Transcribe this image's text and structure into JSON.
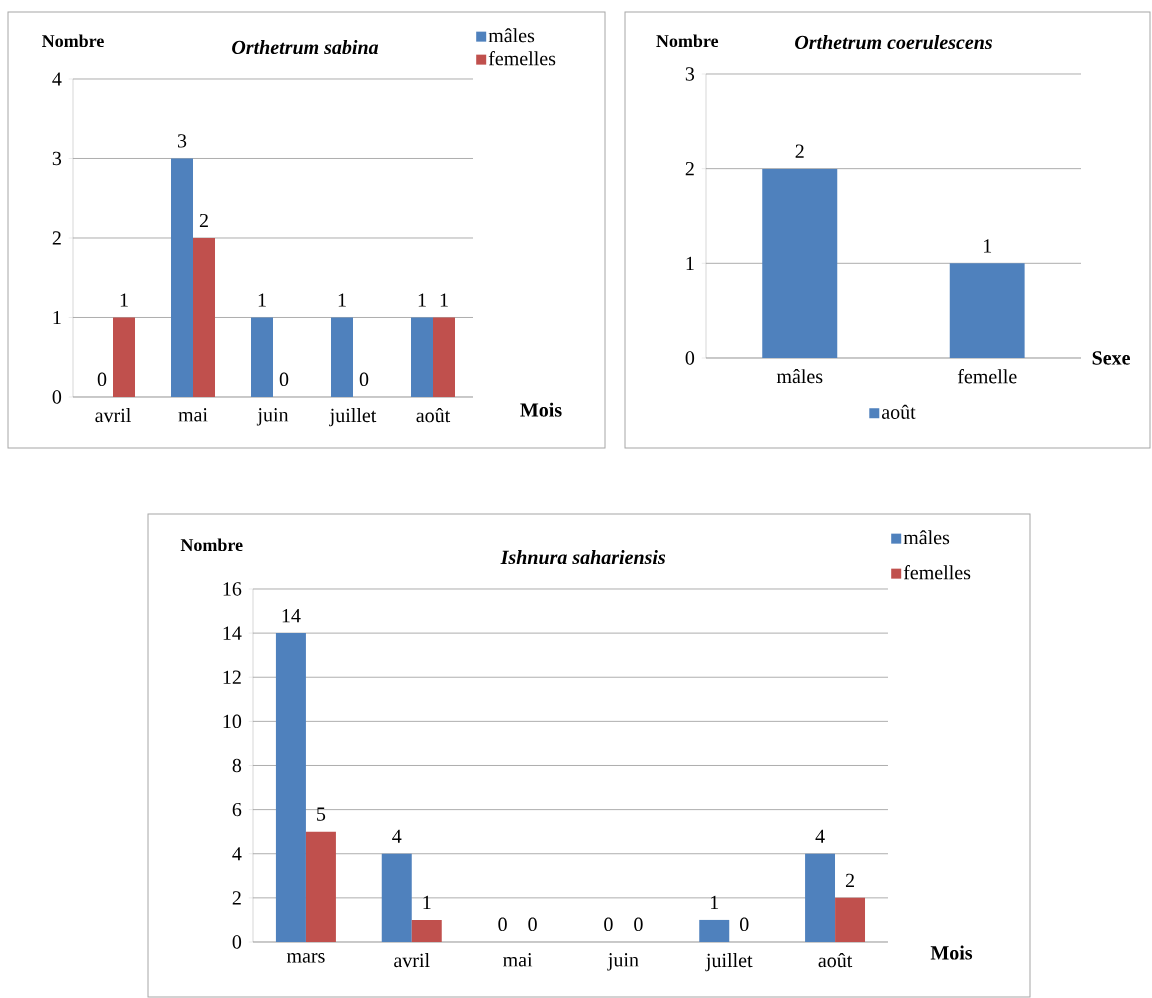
{
  "chart_data": [
    {
      "type": "bar",
      "title": "Orthetrum sabina",
      "ylabel": "Nombre",
      "xlabel": "Mois",
      "categories": [
        "avril",
        "mai",
        "juin",
        "juillet",
        "août"
      ],
      "series": [
        {
          "name": "mâles",
          "color": "#4f81bd",
          "values": [
            0,
            3,
            1,
            1,
            1
          ]
        },
        {
          "name": "femelles",
          "color": "#c0504d",
          "values": [
            1,
            2,
            0,
            0,
            1
          ]
        }
      ],
      "ylim": [
        0,
        4
      ],
      "yticks": [
        0,
        1,
        2,
        3,
        4
      ],
      "grid": "y",
      "legend": "top right",
      "data_labels": true
    },
    {
      "type": "bar",
      "title": "Orthetrum coerulescens",
      "ylabel": "Nombre",
      "xlabel": "Sexe",
      "categories": [
        "mâles",
        "femelle"
      ],
      "series": [
        {
          "name": "août",
          "color": "#4f81bd",
          "values": [
            2,
            1
          ]
        }
      ],
      "ylim": [
        0,
        3
      ],
      "yticks": [
        0,
        1,
        2,
        3
      ],
      "grid": "y",
      "legend": "bottom",
      "data_labels": true
    },
    {
      "type": "bar",
      "title": "Ishnura sahariensis",
      "ylabel": "Nombre",
      "xlabel": "Mois",
      "categories": [
        "mars",
        "avril",
        "mai",
        "juin",
        "juillet",
        "août"
      ],
      "series": [
        {
          "name": "mâles",
          "color": "#4f81bd",
          "values": [
            14,
            4,
            0,
            0,
            1,
            4
          ]
        },
        {
          "name": "femelles",
          "color": "#c0504d",
          "values": [
            5,
            1,
            0,
            0,
            0,
            2
          ]
        }
      ],
      "ylim": [
        0,
        16
      ],
      "yticks": [
        0,
        2,
        4,
        6,
        8,
        10,
        12,
        14,
        16
      ],
      "grid": "y",
      "legend": "top right",
      "data_labels": true
    }
  ]
}
